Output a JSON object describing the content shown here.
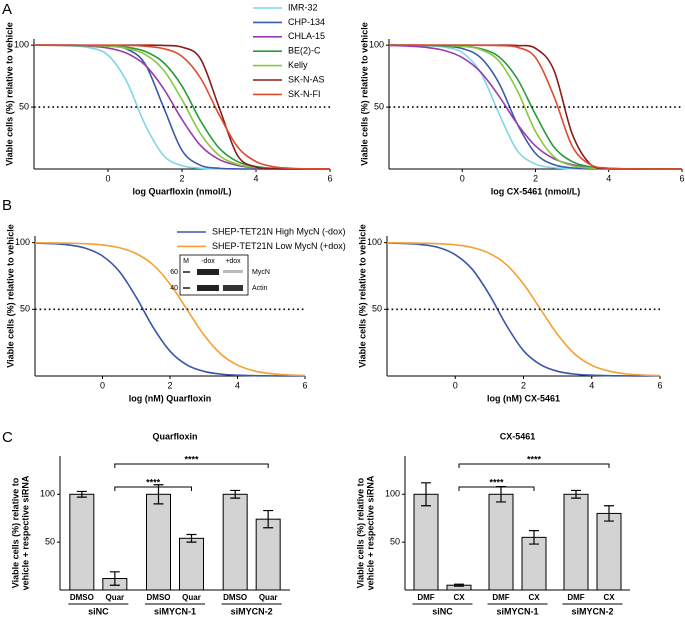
{
  "chart_data": [
    {
      "type": "line",
      "panel": "A",
      "xlabel": "log Quarfloxin (nmol/L)",
      "ylabel": "Viable cells (%) relative to vehicle",
      "x": [
        -2,
        -1.5,
        -1,
        -0.5,
        0,
        0.5,
        1,
        1.5,
        2,
        2.5,
        3,
        3.5,
        4,
        4.5,
        5,
        5.5,
        6
      ],
      "xlim": [
        -2,
        6
      ],
      "xticks": [
        0,
        2,
        4,
        6
      ],
      "ylim": [
        0,
        105
      ],
      "yticks": [
        50,
        100
      ],
      "reference_line": 50,
      "legend": "upper right",
      "series": [
        {
          "name": "IMR-32",
          "color": "#7fd6e8",
          "values": [
            100,
            100,
            99.5,
            98,
            92,
            71,
            36,
            11,
            2.7,
            0.6,
            0.1,
            0,
            0,
            0,
            0,
            0,
            0
          ]
        },
        {
          "name": "CHP-134",
          "color": "#3b5ba9",
          "values": [
            100,
            100,
            100,
            99.9,
            99.4,
            97,
            85,
            50,
            15,
            3,
            0.6,
            0.1,
            0,
            0,
            0,
            0,
            0
          ]
        },
        {
          "name": "CHLA-15",
          "color": "#9a3bb0",
          "values": [
            100,
            99.9,
            99.7,
            99.2,
            97.7,
            93.6,
            84,
            65,
            40,
            19,
            7.7,
            2.9,
            1,
            0.4,
            0.1,
            0,
            0
          ]
        },
        {
          "name": "BE(2)-C",
          "color": "#2a9a3c",
          "values": [
            100,
            100,
            99.9,
            99.8,
            99.5,
            98.4,
            95,
            86,
            67,
            39,
            17,
            6,
            2,
            0.6,
            0.2,
            0,
            0
          ]
        },
        {
          "name": "Kelly",
          "color": "#86c940",
          "values": [
            100,
            99.9,
            99.9,
            99.7,
            99.2,
            97.5,
            92.6,
            80,
            56,
            28.5,
            11,
            3.8,
            1.2,
            0.4,
            0.1,
            0,
            0
          ]
        },
        {
          "name": "SK-N-AS",
          "color": "#8a1c1c",
          "values": [
            100,
            100,
            100,
            100,
            100,
            100,
            100,
            99.8,
            98.4,
            89,
            50,
            11,
            1.6,
            0.2,
            0,
            0,
            0
          ]
        },
        {
          "name": "SK-N-FI",
          "color": "#e04a2c",
          "values": [
            100,
            100,
            100,
            99.9,
            99.9,
            99.8,
            99.2,
            97.2,
            91,
            73.5,
            44,
            18,
            6,
            1.7,
            0.5,
            0.1,
            0
          ]
        }
      ]
    },
    {
      "type": "line",
      "xlabel": "log CX-5461 (nmol/L)",
      "ylabel": "Viable cells (%) relative to vehicle",
      "x": [
        -2,
        -1.5,
        -1,
        -0.5,
        0,
        0.5,
        1,
        1.5,
        2,
        2.5,
        3,
        3.5,
        4,
        4.5,
        5,
        5.5,
        6
      ],
      "xlim": [
        -2,
        6
      ],
      "xticks": [
        0,
        2,
        4,
        6
      ],
      "ylim": [
        0,
        105
      ],
      "yticks": [
        50,
        100
      ],
      "reference_line": 50,
      "series": [
        {
          "color": "#7fd6e8",
          "values": [
            100,
            100,
            99.6,
            98.5,
            94,
            78,
            45,
            15,
            4,
            1,
            0.2,
            0,
            0,
            0,
            0,
            0,
            0
          ]
        },
        {
          "color": "#3b5ba9",
          "values": [
            100,
            100,
            99.8,
            99.3,
            97.3,
            90,
            69.5,
            36.5,
            12.6,
            3.5,
            0.9,
            0.2,
            0,
            0,
            0,
            0,
            0
          ]
        },
        {
          "color": "#9a3bb0",
          "values": [
            99.7,
            99.3,
            98.3,
            95.8,
            90,
            78.4,
            59,
            36.5,
            18.6,
            8.3,
            3.5,
            1.4,
            0.6,
            0.2,
            0.1,
            0,
            0
          ]
        },
        {
          "color": "#2a9a3c",
          "values": [
            100,
            100,
            99.9,
            99.7,
            99.2,
            97.2,
            90.7,
            73,
            44,
            18,
            6,
            1.7,
            0.5,
            0.1,
            0,
            0,
            0
          ]
        },
        {
          "color": "#86c940",
          "values": [
            100,
            100,
            99.9,
            99.7,
            99.1,
            96.5,
            87.3,
            63.5,
            30.4,
            9.9,
            2.7,
            0.7,
            0.2,
            0,
            0,
            0,
            0
          ]
        },
        {
          "color": "#8a1c1c",
          "values": [
            100,
            100,
            100,
            100,
            100,
            100,
            100,
            99.7,
            97.5,
            80,
            28.5,
            3.8,
            0.4,
            0,
            0,
            0,
            0
          ]
        },
        {
          "color": "#e04a2c",
          "values": [
            100,
            100,
            100,
            100,
            100,
            99.9,
            99.7,
            98.3,
            90,
            59,
            18.6,
            3.5,
            0.6,
            0.1,
            0,
            0,
            0
          ]
        }
      ]
    },
    {
      "type": "line",
      "panel": "B",
      "xlabel": "log (nM) Quarfloxin",
      "ylabel": "Viable cells (%) relative to vehicle",
      "x": [
        -2,
        -1.5,
        -1,
        -0.5,
        0,
        0.5,
        1,
        1.5,
        2,
        2.5,
        3,
        3.5,
        4,
        4.5,
        5,
        5.5,
        6
      ],
      "xlim": [
        -2,
        6
      ],
      "xticks": [
        0,
        2,
        4,
        6
      ],
      "ylim": [
        0,
        105
      ],
      "yticks": [
        50,
        100
      ],
      "reference_line": 50,
      "legend": "upper center",
      "inset": {
        "lanes": [
          "M",
          "-dox",
          "+dox"
        ],
        "markers": [
          60,
          40
        ],
        "bands": [
          "MycN",
          "Actin"
        ]
      },
      "series": [
        {
          "name": "SHEP-TET21N High MycN (-dox)",
          "color": "#3a56a8",
          "values": [
            99.7,
            99.3,
            98.3,
            95.8,
            90,
            78.4,
            59,
            36.5,
            18.6,
            8.3,
            3.5,
            1.4,
            0.6,
            0.2,
            0.1,
            0,
            0
          ]
        },
        {
          "name": "SHEP-TET21N Low MycN (+dox)",
          "color": "#f5a033",
          "values": [
            99.9,
            99.8,
            99.6,
            99.2,
            98.3,
            96.2,
            91.8,
            83.4,
            69,
            50,
            31,
            16.6,
            8.2,
            3.8,
            1.7,
            0.8,
            0.4
          ]
        }
      ]
    },
    {
      "type": "line",
      "xlabel": "log (nM) CX-5461",
      "ylabel": "Viable cells (%) relative to vehicle",
      "x": [
        -2,
        -1.5,
        -1,
        -0.5,
        0,
        0.5,
        1,
        1.5,
        2,
        2.5,
        3,
        3.5,
        4,
        4.5,
        5,
        5.5,
        6
      ],
      "xlim": [
        -2,
        6
      ],
      "xticks": [
        0,
        2,
        4,
        6
      ],
      "ylim": [
        0,
        105
      ],
      "yticks": [
        50,
        100
      ],
      "reference_line": 50,
      "series": [
        {
          "color": "#3a56a8",
          "values": [
            99.8,
            99.4,
            98.6,
            96.5,
            91,
            80,
            61,
            38,
            19,
            8.5,
            3.5,
            1.4,
            0.6,
            0.2,
            0.1,
            0,
            0
          ]
        },
        {
          "color": "#f5a033",
          "values": [
            99.9,
            99.8,
            99.6,
            99.2,
            98.4,
            96.4,
            92,
            83.5,
            69,
            50,
            31,
            16.5,
            8,
            3.7,
            1.6,
            0.7,
            0.3
          ]
        }
      ]
    },
    {
      "type": "bar",
      "panel": "C",
      "title": "Quarfloxin",
      "ylabel": [
        "Viable cells (%) relative to",
        "vehicle + respective siRNA"
      ],
      "categories": [
        "DMSO",
        "Quar",
        "DMSO",
        "Quar",
        "DMSO",
        "Quar"
      ],
      "groups": [
        "siNC",
        "siMYCN-1",
        "siMYCN-2"
      ],
      "values": [
        100,
        12,
        100,
        54,
        100,
        74
      ],
      "errors": [
        3,
        7,
        10,
        4,
        4,
        9
      ],
      "color": "#d3d3d3",
      "ylim": [
        0,
        140
      ],
      "yticks": [
        50,
        100
      ],
      "comparisons": [
        {
          "label": "****"
        },
        {
          "label": "****"
        }
      ]
    },
    {
      "type": "bar",
      "title": "CX-5461",
      "ylabel": [
        "Viable cells (%) relative to",
        "vehicle + respective siRNA"
      ],
      "categories": [
        "DMF",
        "CX",
        "DMF",
        "CX",
        "DMF",
        "CX"
      ],
      "groups": [
        "siNC",
        "siMYCN-1",
        "siMYCN-2"
      ],
      "values": [
        100,
        5,
        100,
        55,
        100,
        80
      ],
      "errors": [
        12,
        1,
        8,
        7,
        4,
        8
      ],
      "color": "#d3d3d3",
      "ylim": [
        0,
        140
      ],
      "yticks": [
        50,
        100
      ],
      "comparisons": [
        {
          "label": "****"
        },
        {
          "label": "****"
        }
      ]
    }
  ]
}
